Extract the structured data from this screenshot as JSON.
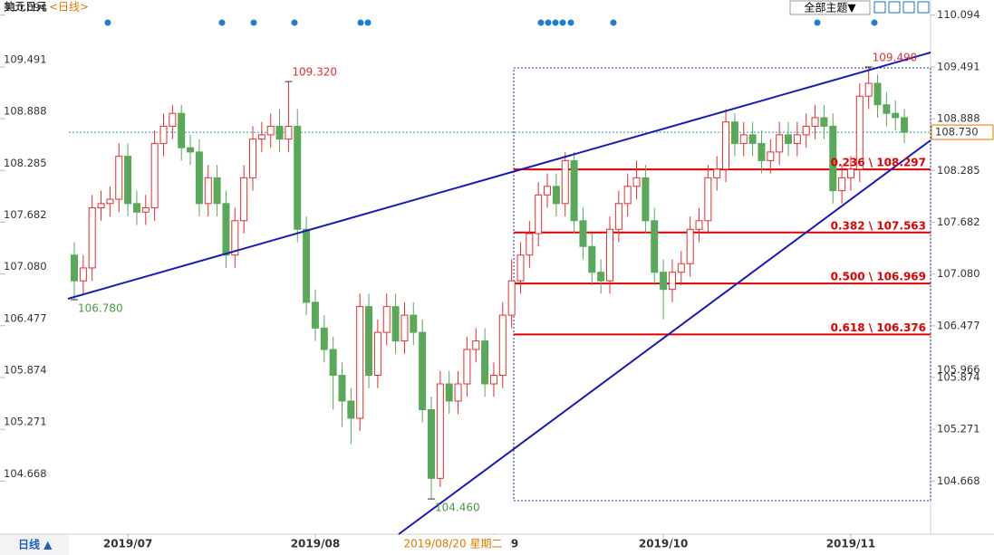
{
  "chart_data": {
    "type": "candlestick",
    "title": "美元日元",
    "subtitle": "<日线>",
    "period_button": "日线 ▲",
    "theme_button": "全部主题▼",
    "up_color": "#e03030",
    "down_color": "#5aa85a",
    "categories": [
      null,
      null,
      null,
      null,
      null,
      null,
      "2019/07",
      null,
      null,
      null,
      null,
      null,
      null,
      null,
      null,
      null,
      null,
      null,
      null,
      null,
      null,
      null,
      null,
      null,
      null,
      null,
      null,
      "2019/08",
      null,
      null,
      null,
      null,
      null,
      null,
      null,
      null,
      null,
      null,
      null,
      null,
      null,
      null,
      null,
      null,
      null,
      null,
      null,
      "2019/09",
      null,
      null,
      null,
      null,
      null,
      null,
      null,
      null,
      null,
      null,
      null,
      null,
      null,
      null,
      null,
      null,
      null,
      null,
      "2019/10",
      null,
      null,
      null,
      null,
      null,
      null,
      null,
      null,
      null,
      null,
      null,
      null,
      null,
      null,
      null,
      null,
      null,
      null,
      null,
      null,
      "2019/11",
      null,
      null,
      null,
      null,
      null,
      null
    ],
    "open": [
      107.3,
      107.0,
      107.15,
      107.85,
      107.9,
      107.95,
      108.45,
      107.9,
      107.8,
      107.85,
      108.6,
      108.8,
      108.95,
      108.55,
      108.5,
      107.9,
      108.2,
      107.9,
      107.3,
      107.7,
      108.2,
      108.65,
      108.7,
      108.8,
      108.65,
      108.8,
      107.6,
      106.75,
      106.45,
      106.2,
      105.9,
      105.6,
      105.4,
      106.7,
      105.9,
      106.4,
      106.7,
      106.3,
      106.6,
      106.4,
      105.5,
      104.7,
      105.8,
      105.6,
      105.8,
      106.2,
      106.3,
      105.8,
      105.9,
      106.6,
      107.0,
      107.3,
      107.55,
      108.0,
      108.1,
      107.9,
      108.4,
      107.7,
      107.4,
      107.1,
      107.0,
      107.6,
      107.9,
      108.1,
      108.2,
      107.7,
      107.1,
      106.9,
      107.1,
      107.2,
      107.6,
      107.7,
      108.2,
      108.3,
      108.85,
      108.6,
      108.7,
      108.6,
      108.4,
      108.5,
      108.7,
      108.6,
      108.7,
      108.8,
      108.9,
      108.8,
      108.05,
      108.2,
      108.3,
      109.15,
      109.3,
      109.05,
      108.95,
      108.9
    ],
    "high": [
      107.45,
      107.3,
      108.0,
      108.05,
      108.1,
      108.6,
      108.6,
      108.05,
      108.0,
      108.75,
      108.95,
      109.05,
      109.05,
      108.7,
      108.65,
      108.35,
      108.35,
      108.05,
      107.85,
      108.35,
      108.8,
      108.85,
      108.95,
      109.0,
      109.32,
      109.0,
      107.75,
      106.9,
      106.6,
      106.35,
      106.05,
      105.75,
      106.85,
      106.85,
      106.55,
      106.85,
      106.85,
      106.75,
      106.75,
      106.55,
      105.65,
      105.95,
      105.95,
      105.95,
      106.35,
      106.45,
      106.45,
      106.05,
      106.75,
      107.25,
      107.45,
      107.7,
      108.15,
      108.25,
      108.25,
      108.5,
      108.5,
      107.85,
      107.55,
      107.25,
      107.75,
      108.05,
      108.25,
      108.4,
      108.35,
      107.85,
      107.25,
      107.25,
      107.35,
      107.75,
      107.85,
      108.35,
      108.45,
      109.0,
      108.95,
      108.85,
      108.85,
      108.75,
      108.65,
      108.85,
      108.85,
      108.85,
      108.95,
      109.05,
      109.05,
      108.95,
      108.35,
      108.45,
      109.3,
      109.49,
      109.4,
      109.2,
      109.1,
      109.0
    ],
    "low": [
      106.78,
      106.85,
      107.0,
      107.7,
      107.75,
      107.8,
      107.75,
      107.65,
      107.65,
      107.7,
      108.45,
      108.65,
      108.4,
      108.35,
      107.75,
      107.75,
      107.75,
      107.15,
      107.15,
      107.55,
      108.05,
      108.5,
      108.55,
      108.5,
      108.5,
      107.45,
      106.6,
      106.3,
      106.05,
      105.5,
      105.3,
      105.1,
      105.25,
      105.75,
      105.75,
      106.25,
      106.15,
      106.15,
      106.25,
      105.35,
      104.46,
      104.6,
      105.45,
      105.45,
      105.65,
      106.05,
      105.65,
      105.65,
      105.75,
      106.45,
      106.85,
      107.15,
      107.4,
      107.85,
      107.75,
      107.75,
      107.55,
      107.25,
      106.95,
      106.85,
      106.85,
      107.45,
      107.75,
      107.95,
      107.55,
      106.95,
      106.55,
      106.75,
      106.95,
      107.05,
      107.45,
      107.55,
      108.05,
      108.15,
      108.45,
      108.45,
      108.45,
      108.25,
      108.25,
      108.35,
      108.45,
      108.45,
      108.55,
      108.65,
      108.65,
      107.9,
      107.9,
      108.05,
      108.15,
      109.0,
      108.9,
      108.8,
      108.75,
      108.6
    ],
    "close": [
      107.0,
      107.15,
      107.85,
      107.9,
      107.95,
      108.45,
      107.9,
      107.8,
      107.85,
      108.6,
      108.8,
      108.95,
      108.55,
      108.5,
      107.9,
      108.2,
      107.9,
      107.3,
      107.7,
      108.2,
      108.65,
      108.7,
      108.8,
      108.65,
      108.8,
      107.6,
      106.75,
      106.45,
      106.2,
      105.9,
      105.6,
      105.4,
      106.7,
      105.9,
      106.4,
      106.7,
      106.3,
      106.6,
      106.4,
      105.5,
      104.7,
      105.8,
      105.6,
      105.8,
      106.2,
      106.3,
      105.8,
      105.9,
      106.6,
      107.0,
      107.3,
      107.55,
      108.0,
      108.1,
      107.9,
      108.4,
      107.7,
      107.4,
      107.1,
      107.0,
      107.6,
      107.9,
      108.1,
      108.2,
      107.7,
      107.1,
      106.9,
      107.1,
      107.2,
      107.6,
      107.7,
      108.2,
      108.3,
      108.85,
      108.6,
      108.7,
      108.6,
      108.4,
      108.5,
      108.7,
      108.6,
      108.7,
      108.8,
      108.9,
      108.8,
      108.05,
      108.2,
      108.3,
      109.15,
      109.3,
      109.05,
      108.95,
      108.9,
      108.73
    ],
    "ylim": [
      104.05,
      110.27
    ],
    "yticks": [
      110.094,
      109.491,
      108.888,
      108.285,
      107.682,
      {
        "value": 107.08,
        "label": "107.080"
      },
      106.477,
      105.874,
      105.271,
      104.668
    ],
    "extremes": [
      {
        "label": "109.320",
        "value": 109.32
      },
      {
        "label": "106.780",
        "value": 106.78
      },
      {
        "label": "104.460",
        "value": 104.46
      },
      {
        "label": "109.490",
        "value": 109.49
      }
    ],
    "fibonacci_color": "#e00000",
    "fibonacci": [
      {
        "label": "0.236 \\ 108.297",
        "value": 108.297
      },
      {
        "label": "0.382 \\ 107.563",
        "value": 107.563
      },
      {
        "label": "0.500 \\ 106.969",
        "value": 106.969
      },
      {
        "label": "0.618 \\ 106.376",
        "value": 106.376
      }
    ],
    "last_price": {
      "value": 108.73,
      "label": "108.730"
    },
    "cursor_price": 105.966,
    "cursor_date": "2019/08/20 星期二"
  }
}
